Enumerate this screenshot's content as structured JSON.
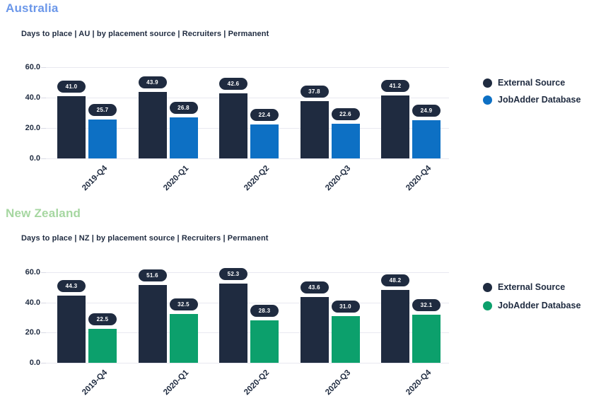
{
  "page": {
    "background": "#ffffff"
  },
  "colors": {
    "dark_navy": "#1f2b40",
    "au_accent_blue": "#0d70c4",
    "nz_accent_green": "#0ca06c",
    "gridline": "#e8e8f0",
    "label_pill_bg": "#1f2b40",
    "label_pill_text": "#ffffff"
  },
  "sections": [
    {
      "title": "Australia",
      "title_color": "#6b97e9",
      "subtitle": "Days to place | AU | by placement source | Recruiters | Permanent"
    },
    {
      "title": "New Zealand",
      "title_color": "#a6d7a1",
      "subtitle": "Days to place | NZ | by placement source | Recruiters | Permanent"
    }
  ],
  "chart_data": [
    {
      "type": "bar",
      "region": "Australia",
      "title": "Days to place | AU | by placement source | Recruiters | Permanent",
      "categories": [
        "2019-Q4",
        "2020-Q1",
        "2020-Q2",
        "2020-Q3",
        "2020-Q4"
      ],
      "series": [
        {
          "name": "External Source",
          "color": "#1f2b40",
          "values": [
            41.0,
            43.9,
            42.6,
            37.8,
            41.2
          ]
        },
        {
          "name": "JobAdder Database",
          "color": "#0d70c4",
          "values": [
            25.7,
            26.8,
            22.4,
            22.6,
            24.9
          ]
        }
      ],
      "ylim": [
        0,
        60
      ],
      "yticks": [
        0,
        20,
        40,
        60
      ],
      "ytick_labels": [
        "0.0",
        "20.0",
        "40.0",
        "60.0"
      ],
      "grid": true,
      "bar_value_labels": true,
      "legend_position": "right"
    },
    {
      "type": "bar",
      "region": "New Zealand",
      "title": "Days to place | NZ | by placement source | Recruiters | Permanent",
      "categories": [
        "2019-Q4",
        "2020-Q1",
        "2020-Q2",
        "2020-Q3",
        "2020-Q4"
      ],
      "series": [
        {
          "name": "External Source",
          "color": "#1f2b40",
          "values": [
            44.3,
            51.6,
            52.3,
            43.6,
            48.2
          ]
        },
        {
          "name": "JobAdder Database",
          "color": "#0ca06c",
          "values": [
            22.5,
            32.5,
            28.3,
            31.0,
            32.1
          ]
        }
      ],
      "ylim": [
        0,
        60
      ],
      "yticks": [
        0,
        20,
        40,
        60
      ],
      "ytick_labels": [
        "0.0",
        "20.0",
        "40.0",
        "60.0"
      ],
      "grid": true,
      "bar_value_labels": true,
      "legend_position": "right"
    }
  ]
}
